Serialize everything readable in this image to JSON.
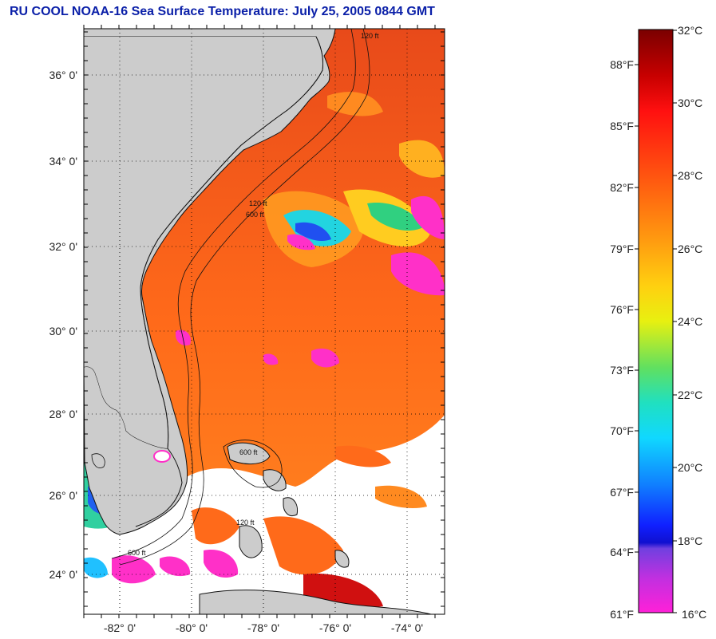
{
  "title": "RU COOL  NOAA-16  Sea Surface Temperature:  July 25, 2005 0844 GMT",
  "map": {
    "lat_labels": [
      "36° 0'",
      "34° 0'",
      "32° 0'",
      "30° 0'",
      "28° 0'",
      "26° 0'",
      "24° 0'"
    ],
    "lon_labels": [
      "-82° 0'",
      "-80° 0'",
      "-78° 0'",
      "-76° 0'",
      "-74° 0'"
    ],
    "contour_labels": [
      "120 ft",
      "600 ft"
    ],
    "colors": {
      "land": "#cccccc",
      "cloud": "#ffffff",
      "sea_warm": "#ff6a1a"
    }
  },
  "colorbar": {
    "celsius_labels": [
      "32°C",
      "30°C",
      "28°C",
      "26°C",
      "24°C",
      "22°C",
      "20°C",
      "18°C",
      "16°C"
    ],
    "fahrenheit_labels": [
      "88°F",
      "85°F",
      "82°F",
      "79°F",
      "76°F",
      "73°F",
      "70°F",
      "67°F",
      "64°F",
      "61°F"
    ],
    "range_celsius": [
      16,
      32
    ]
  }
}
